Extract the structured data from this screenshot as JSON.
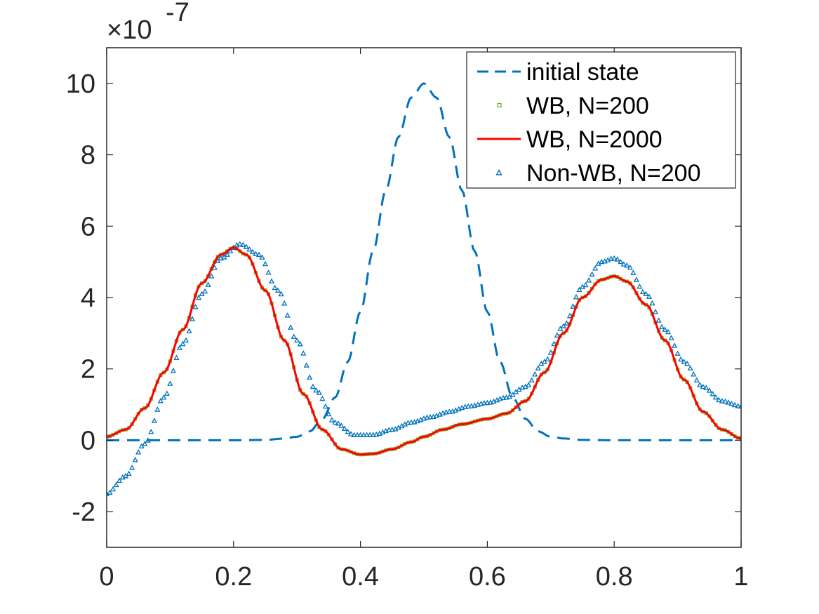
{
  "chart_data": {
    "type": "line",
    "title": "",
    "xlabel": "",
    "ylabel": "",
    "y_exponent_label": {
      "base": "×10",
      "exponent": "-7"
    },
    "xlim": [
      0,
      1
    ],
    "ylim": [
      -3,
      11
    ],
    "x_ticks": [
      0,
      0.2,
      0.4,
      0.6,
      0.8,
      1
    ],
    "x_tick_labels": [
      "0",
      "0.2",
      "0.4",
      "0.6",
      "0.8",
      "1"
    ],
    "y_ticks": [
      -2,
      0,
      2,
      4,
      6,
      8,
      10
    ],
    "y_tick_labels": [
      "-2",
      "0",
      "2",
      "4",
      "6",
      "8",
      "10"
    ],
    "grid": false,
    "legend_position": "top-right",
    "series": [
      {
        "name": "initial state",
        "style": "dashed",
        "color": "#0072BD",
        "x": [
          0,
          0.05,
          0.1,
          0.15,
          0.2,
          0.25,
          0.28,
          0.3,
          0.32,
          0.34,
          0.36,
          0.38,
          0.4,
          0.42,
          0.44,
          0.46,
          0.48,
          0.5,
          0.52,
          0.54,
          0.56,
          0.58,
          0.6,
          0.62,
          0.64,
          0.66,
          0.68,
          0.7,
          0.72,
          0.75,
          0.8,
          0.85,
          0.9,
          0.95,
          1
        ],
        "y": [
          0,
          0,
          0,
          0,
          0,
          0.01,
          0.05,
          0.1,
          0.25,
          0.6,
          1.2,
          2.2,
          3.6,
          5.3,
          7.0,
          8.5,
          9.6,
          10.0,
          9.6,
          8.5,
          7.0,
          5.3,
          3.6,
          2.2,
          1.2,
          0.6,
          0.25,
          0.1,
          0.05,
          0.01,
          0,
          0,
          0,
          0,
          0
        ]
      },
      {
        "name": "WB, N=200",
        "style": "markers-square",
        "color": "#77AC30",
        "x": [
          0,
          0.03,
          0.06,
          0.09,
          0.12,
          0.15,
          0.18,
          0.2,
          0.22,
          0.25,
          0.28,
          0.31,
          0.34,
          0.37,
          0.4,
          0.42,
          0.45,
          0.48,
          0.5,
          0.53,
          0.56,
          0.6,
          0.63,
          0.66,
          0.69,
          0.72,
          0.75,
          0.78,
          0.8,
          0.82,
          0.85,
          0.88,
          0.91,
          0.94,
          0.97,
          1
        ],
        "y": [
          0.1,
          0.3,
          0.9,
          1.9,
          3.1,
          4.4,
          5.2,
          5.4,
          5.2,
          4.2,
          2.8,
          1.3,
          0.3,
          -0.25,
          -0.4,
          -0.38,
          -0.25,
          -0.05,
          0.1,
          0.3,
          0.45,
          0.6,
          0.75,
          1.1,
          1.9,
          3.0,
          4.0,
          4.5,
          4.6,
          4.45,
          3.8,
          2.8,
          1.7,
          0.8,
          0.3,
          0.05
        ]
      },
      {
        "name": "WB, N=2000",
        "style": "solid",
        "color": "#FF0000",
        "x": [
          0,
          0.03,
          0.06,
          0.09,
          0.12,
          0.15,
          0.18,
          0.2,
          0.22,
          0.25,
          0.28,
          0.31,
          0.34,
          0.37,
          0.4,
          0.42,
          0.45,
          0.48,
          0.5,
          0.53,
          0.56,
          0.6,
          0.63,
          0.66,
          0.69,
          0.72,
          0.75,
          0.78,
          0.8,
          0.82,
          0.85,
          0.88,
          0.91,
          0.94,
          0.97,
          1
        ],
        "y": [
          0.1,
          0.3,
          0.9,
          1.9,
          3.1,
          4.4,
          5.2,
          5.4,
          5.2,
          4.2,
          2.8,
          1.3,
          0.3,
          -0.25,
          -0.4,
          -0.38,
          -0.25,
          -0.05,
          0.1,
          0.3,
          0.45,
          0.6,
          0.75,
          1.1,
          1.9,
          3.0,
          4.0,
          4.5,
          4.6,
          4.45,
          3.8,
          2.8,
          1.7,
          0.8,
          0.3,
          0.05
        ]
      },
      {
        "name": "Non-WB, N=200",
        "style": "markers-triangle",
        "color": "#0072BD",
        "x": [
          0,
          0.03,
          0.06,
          0.09,
          0.12,
          0.15,
          0.18,
          0.21,
          0.24,
          0.27,
          0.3,
          0.33,
          0.36,
          0.39,
          0.42,
          0.45,
          0.48,
          0.51,
          0.54,
          0.57,
          0.6,
          0.63,
          0.66,
          0.69,
          0.72,
          0.75,
          0.78,
          0.8,
          0.82,
          0.85,
          0.88,
          0.91,
          0.94,
          0.97,
          1
        ],
        "y": [
          -1.5,
          -1.0,
          -0.1,
          1.2,
          2.7,
          4.1,
          5.1,
          5.5,
          5.2,
          4.2,
          2.8,
          1.4,
          0.5,
          0.15,
          0.15,
          0.3,
          0.5,
          0.65,
          0.8,
          0.95,
          1.05,
          1.2,
          1.5,
          2.2,
          3.2,
          4.3,
          5.0,
          5.1,
          4.9,
          4.1,
          3.1,
          2.2,
          1.5,
          1.1,
          0.95
        ]
      }
    ]
  }
}
